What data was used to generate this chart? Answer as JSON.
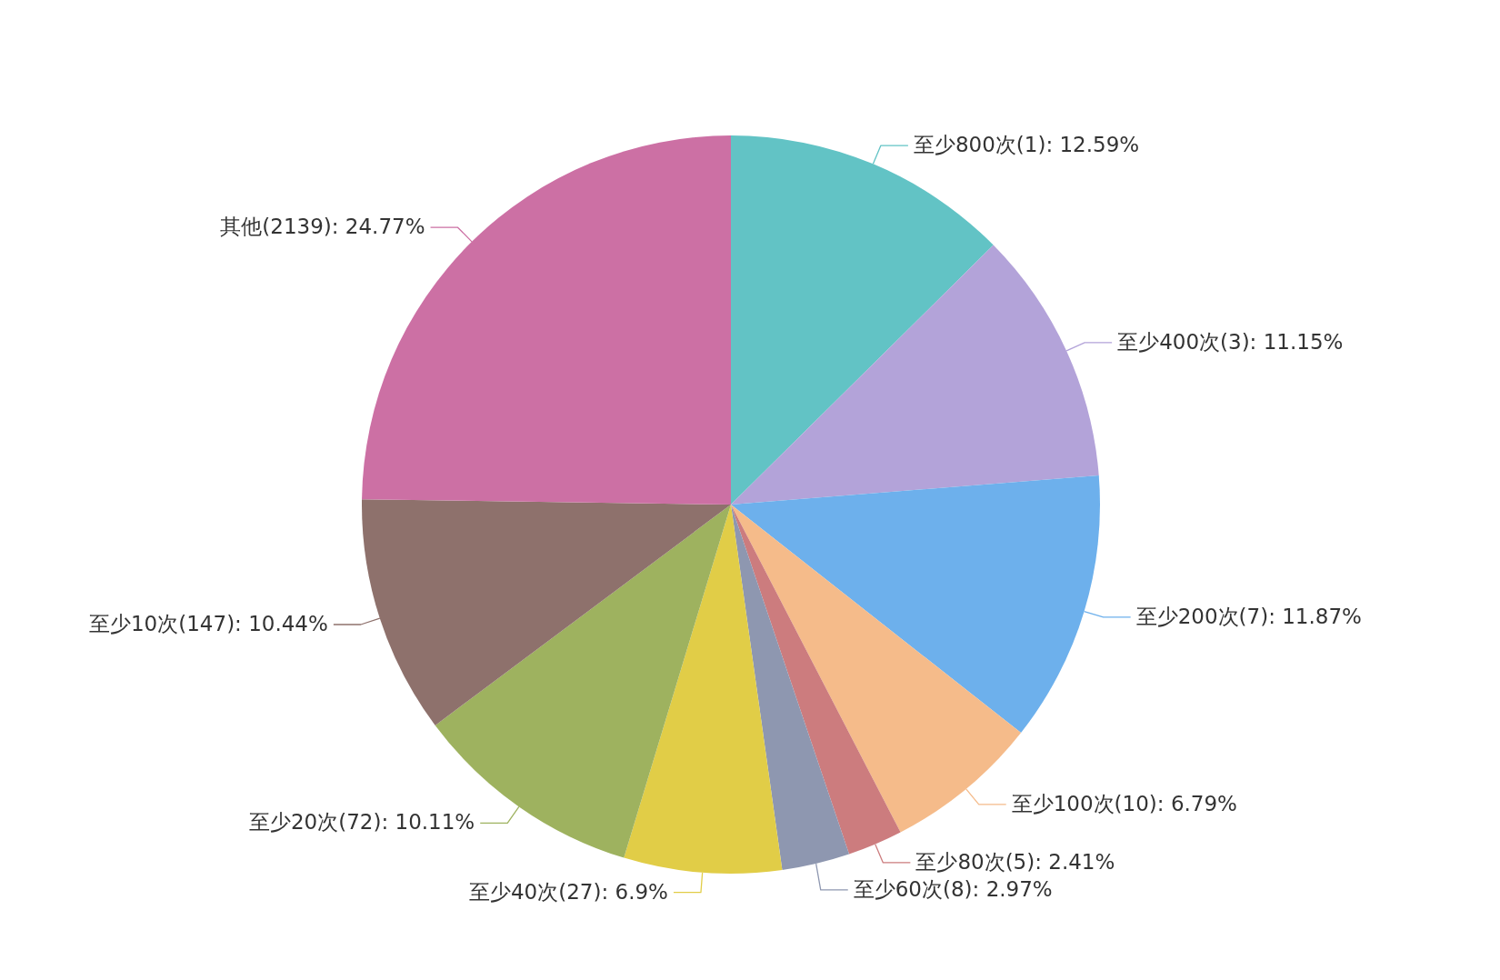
{
  "chart_data": {
    "type": "pie",
    "categories": [
      "至少800次(1)",
      "至少400次(3)",
      "至少200次(7)",
      "至少100次(10)",
      "至少80次(5)",
      "至少60次(8)",
      "至少40次(27)",
      "至少20次(72)",
      "至少10次(147)",
      "其他(2139)"
    ],
    "values": [
      12.59,
      11.15,
      11.87,
      6.79,
      2.41,
      2.97,
      6.9,
      10.11,
      10.44,
      24.77
    ],
    "value_labels": [
      "12.59%",
      "11.15%",
      "11.87%",
      "6.79%",
      "2.41%",
      "2.97%",
      "6.9%",
      "10.11%",
      "10.44%",
      "24.77%"
    ],
    "colors": [
      "#62c3c5",
      "#b3a3d9",
      "#6db0ec",
      "#f5bb8a",
      "#cc7c7e",
      "#8e97b0",
      "#e1cd47",
      "#9eb25f",
      "#8e716c",
      "#cc70a4"
    ]
  }
}
